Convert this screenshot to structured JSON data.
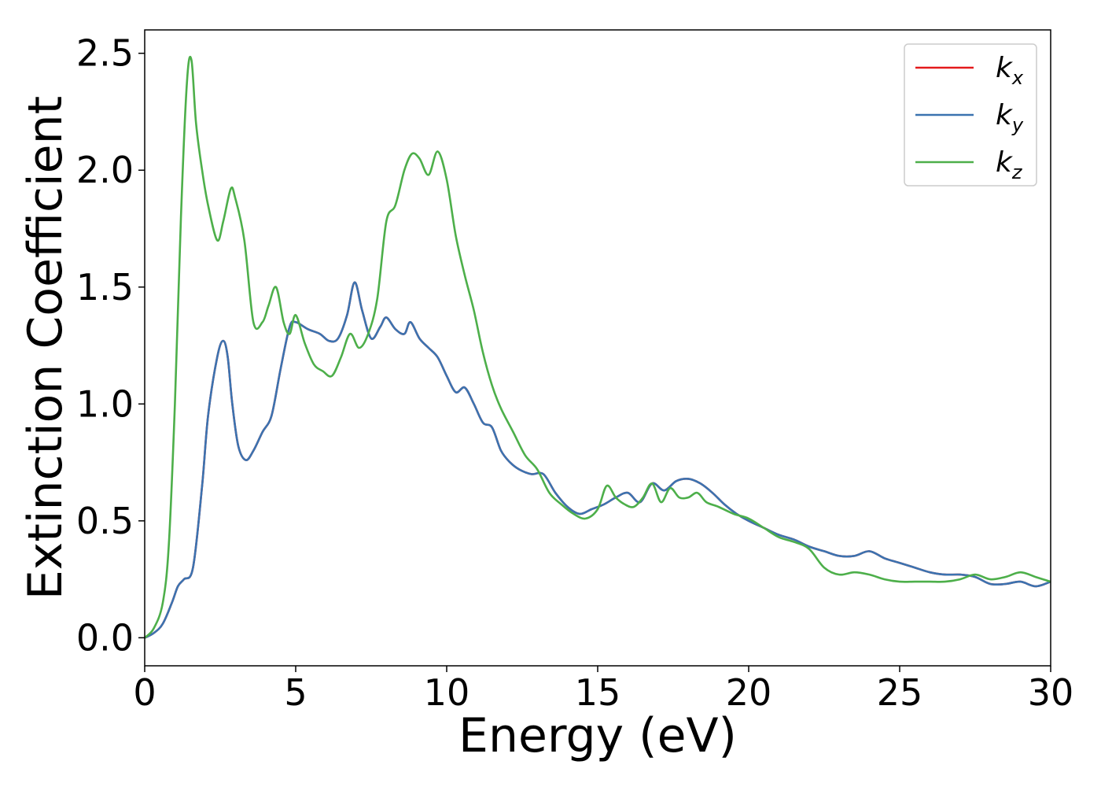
{
  "chart_data": {
    "type": "line",
    "title": "",
    "xlabel": "Energy (eV)",
    "ylabel": "Extinction Coefficient",
    "xlim": [
      0,
      30
    ],
    "ylim": [
      -0.12,
      2.6
    ],
    "xticks": [
      0,
      5,
      10,
      15,
      20,
      25,
      30
    ],
    "xtick_labels": [
      "0",
      "5",
      "10",
      "15",
      "20",
      "25",
      "30"
    ],
    "yticks": [
      0,
      0.5,
      1.0,
      1.5,
      2.0,
      2.5
    ],
    "ytick_labels": [
      "0.0",
      "0.5",
      "1.0",
      "1.5",
      "2.0",
      "2.5"
    ],
    "grid": false,
    "legend_position": "top-right",
    "series": [
      {
        "name": "k_x",
        "legend_base": "k",
        "legend_sub": "x",
        "color": "#e41a1c",
        "x": [
          0,
          0.3,
          0.6,
          0.9,
          1.1,
          1.3,
          1.6,
          1.9,
          2.1,
          2.4,
          2.6,
          2.75,
          2.9,
          3.1,
          3.35,
          3.6,
          3.9,
          4.2,
          4.5,
          4.8,
          5.0,
          5.4,
          5.8,
          6.1,
          6.4,
          6.7,
          6.95,
          7.2,
          7.5,
          7.8,
          8.0,
          8.3,
          8.6,
          8.8,
          9.1,
          9.4,
          9.7,
          10.0,
          10.3,
          10.6,
          10.9,
          11.2,
          11.5,
          11.8,
          12.1,
          12.4,
          12.8,
          13.2,
          13.6,
          14.0,
          14.4,
          14.8,
          15.2,
          15.6,
          16.0,
          16.4,
          16.8,
          17.2,
          17.6,
          18.0,
          18.4,
          18.8,
          19.2,
          19.6,
          20.0,
          20.5,
          21.0,
          21.5,
          22.0,
          22.5,
          23.0,
          23.5,
          24.0,
          24.5,
          25.0,
          25.5,
          26.0,
          26.5,
          27.0,
          27.5,
          28.0,
          28.5,
          29.0,
          29.5,
          30.0
        ],
        "y": [
          0,
          0.02,
          0.06,
          0.15,
          0.22,
          0.25,
          0.3,
          0.65,
          0.95,
          1.2,
          1.27,
          1.2,
          1.0,
          0.82,
          0.76,
          0.8,
          0.88,
          0.95,
          1.15,
          1.33,
          1.35,
          1.32,
          1.3,
          1.27,
          1.28,
          1.38,
          1.52,
          1.4,
          1.28,
          1.33,
          1.37,
          1.32,
          1.3,
          1.35,
          1.28,
          1.24,
          1.2,
          1.12,
          1.05,
          1.07,
          1.0,
          0.92,
          0.9,
          0.8,
          0.75,
          0.72,
          0.7,
          0.7,
          0.62,
          0.56,
          0.53,
          0.55,
          0.57,
          0.6,
          0.62,
          0.58,
          0.66,
          0.63,
          0.67,
          0.68,
          0.66,
          0.62,
          0.57,
          0.53,
          0.5,
          0.47,
          0.44,
          0.42,
          0.39,
          0.37,
          0.35,
          0.35,
          0.37,
          0.34,
          0.32,
          0.3,
          0.28,
          0.27,
          0.27,
          0.26,
          0.23,
          0.23,
          0.24,
          0.22,
          0.24
        ]
      },
      {
        "name": "k_y",
        "legend_base": "k",
        "legend_sub": "y",
        "color": "#3b73b0",
        "x": [
          0,
          0.3,
          0.6,
          0.9,
          1.1,
          1.3,
          1.6,
          1.9,
          2.1,
          2.4,
          2.6,
          2.75,
          2.9,
          3.1,
          3.35,
          3.6,
          3.9,
          4.2,
          4.5,
          4.8,
          5.0,
          5.4,
          5.8,
          6.1,
          6.4,
          6.7,
          6.95,
          7.2,
          7.5,
          7.8,
          8.0,
          8.3,
          8.6,
          8.8,
          9.1,
          9.4,
          9.7,
          10.0,
          10.3,
          10.6,
          10.9,
          11.2,
          11.5,
          11.8,
          12.1,
          12.4,
          12.8,
          13.2,
          13.6,
          14.0,
          14.4,
          14.8,
          15.2,
          15.6,
          16.0,
          16.4,
          16.8,
          17.2,
          17.6,
          18.0,
          18.4,
          18.8,
          19.2,
          19.6,
          20.0,
          20.5,
          21.0,
          21.5,
          22.0,
          22.5,
          23.0,
          23.5,
          24.0,
          24.5,
          25.0,
          25.5,
          26.0,
          26.5,
          27.0,
          27.5,
          28.0,
          28.5,
          29.0,
          29.5,
          30.0
        ],
        "y": [
          0,
          0.02,
          0.06,
          0.15,
          0.22,
          0.25,
          0.3,
          0.65,
          0.95,
          1.2,
          1.27,
          1.2,
          1.0,
          0.82,
          0.76,
          0.8,
          0.88,
          0.95,
          1.15,
          1.33,
          1.35,
          1.32,
          1.3,
          1.27,
          1.28,
          1.38,
          1.52,
          1.4,
          1.28,
          1.33,
          1.37,
          1.32,
          1.3,
          1.35,
          1.28,
          1.24,
          1.2,
          1.12,
          1.05,
          1.07,
          1.0,
          0.92,
          0.9,
          0.8,
          0.75,
          0.72,
          0.7,
          0.7,
          0.62,
          0.56,
          0.53,
          0.55,
          0.57,
          0.6,
          0.62,
          0.58,
          0.66,
          0.63,
          0.67,
          0.68,
          0.66,
          0.62,
          0.57,
          0.53,
          0.5,
          0.47,
          0.44,
          0.42,
          0.39,
          0.37,
          0.35,
          0.35,
          0.37,
          0.34,
          0.32,
          0.3,
          0.28,
          0.27,
          0.27,
          0.26,
          0.23,
          0.23,
          0.24,
          0.22,
          0.24
        ]
      },
      {
        "name": "k_z",
        "legend_base": "k",
        "legend_sub": "z",
        "color": "#4daf4a",
        "x": [
          0,
          0.3,
          0.6,
          0.8,
          1.0,
          1.2,
          1.4,
          1.55,
          1.7,
          1.9,
          2.1,
          2.4,
          2.6,
          2.85,
          3.0,
          3.3,
          3.6,
          3.9,
          4.1,
          4.35,
          4.6,
          4.8,
          5.0,
          5.3,
          5.6,
          5.9,
          6.2,
          6.5,
          6.8,
          7.1,
          7.4,
          7.7,
          8.0,
          8.3,
          8.6,
          8.85,
          9.1,
          9.4,
          9.7,
          10.0,
          10.3,
          10.6,
          10.9,
          11.2,
          11.5,
          11.8,
          12.2,
          12.6,
          13.0,
          13.4,
          13.8,
          14.2,
          14.6,
          15.0,
          15.3,
          15.6,
          15.9,
          16.2,
          16.5,
          16.8,
          17.1,
          17.4,
          17.7,
          18.0,
          18.3,
          18.6,
          19.0,
          19.5,
          20.0,
          20.5,
          21.0,
          21.5,
          22.0,
          22.5,
          23.0,
          23.5,
          24.0,
          24.5,
          25.0,
          25.5,
          26.0,
          26.5,
          27.0,
          27.5,
          28.0,
          28.5,
          29.0,
          29.5,
          30.0
        ],
        "y": [
          0,
          0.04,
          0.15,
          0.4,
          1.0,
          1.8,
          2.38,
          2.47,
          2.2,
          2.0,
          1.85,
          1.7,
          1.78,
          1.92,
          1.88,
          1.7,
          1.35,
          1.35,
          1.42,
          1.5,
          1.35,
          1.3,
          1.38,
          1.26,
          1.17,
          1.14,
          1.12,
          1.2,
          1.3,
          1.24,
          1.3,
          1.45,
          1.78,
          1.85,
          2.0,
          2.07,
          2.05,
          1.98,
          2.08,
          1.96,
          1.72,
          1.55,
          1.4,
          1.22,
          1.08,
          0.98,
          0.88,
          0.78,
          0.72,
          0.62,
          0.57,
          0.53,
          0.51,
          0.55,
          0.65,
          0.6,
          0.57,
          0.56,
          0.6,
          0.66,
          0.58,
          0.64,
          0.6,
          0.6,
          0.62,
          0.58,
          0.56,
          0.53,
          0.51,
          0.47,
          0.43,
          0.41,
          0.38,
          0.3,
          0.27,
          0.28,
          0.27,
          0.25,
          0.24,
          0.24,
          0.24,
          0.24,
          0.25,
          0.27,
          0.25,
          0.26,
          0.28,
          0.26,
          0.24
        ]
      }
    ]
  }
}
